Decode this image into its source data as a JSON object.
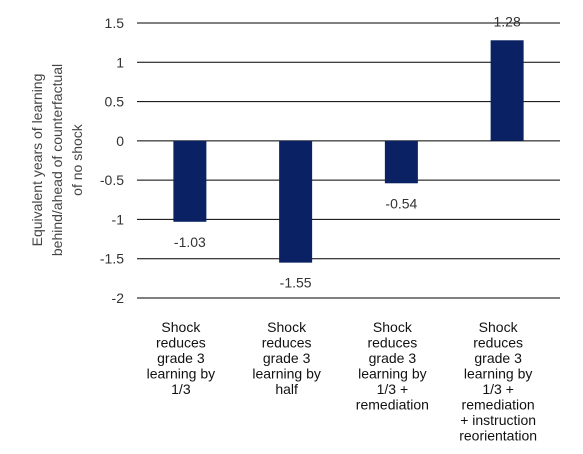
{
  "chart_data": {
    "type": "bar",
    "categories": [
      [
        "Shock",
        "reduces",
        "grade 3",
        "learning by",
        "1/3"
      ],
      [
        "Shock",
        "reduces",
        "grade 3",
        "learning by",
        "half"
      ],
      [
        "Shock",
        "reduces",
        "grade 3",
        "learning by",
        "1/3 +",
        "remediation"
      ],
      [
        "Shock",
        "reduces",
        "grade 3",
        "learning by",
        "1/3 +",
        "remediation",
        "+ instruction",
        "reorientation"
      ]
    ],
    "values": [
      -1.03,
      -1.55,
      -0.54,
      1.28
    ],
    "data_labels": [
      "-1.03",
      "-1.55",
      "-0.54",
      "1.28"
    ],
    "ylabel": [
      "Equivalent years of learning",
      "behind/ahead of counterfactual",
      "of no shock"
    ],
    "ylim": [
      -2,
      1.5
    ],
    "yticks": [
      1.5,
      1,
      0.5,
      0,
      -0.5,
      -1,
      -1.5,
      -2
    ],
    "ytick_labels": [
      "1.5",
      "1",
      "0.5",
      "0",
      "-0.5",
      "-1",
      "-1.5",
      "-2"
    ],
    "grid": true,
    "legend": "none",
    "bar_color": "#0a2263"
  }
}
